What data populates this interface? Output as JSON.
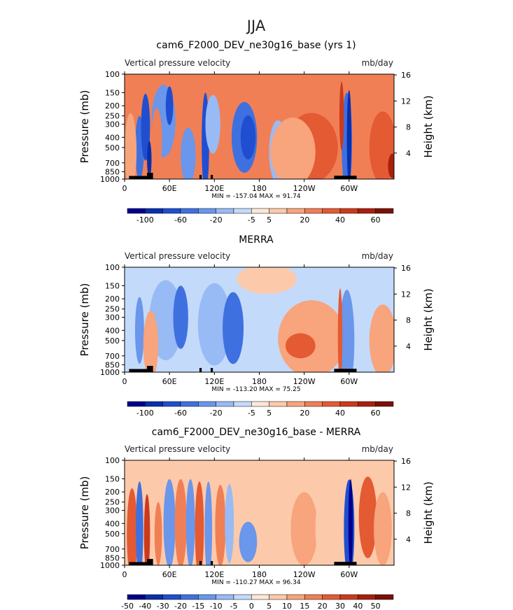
{
  "page": {
    "title": "JJA"
  },
  "chart_data": [
    {
      "type": "heatmap",
      "title": "cam6_F2000_DEV_ne30g16_base (yrs 1)",
      "variable_label": "Vertical pressure velocity",
      "units_label": "mb/day",
      "xlabel": "",
      "ylabel": "Pressure (mb)",
      "right_ylabel": "Height (km)",
      "x_ticks": [
        "0",
        "60E",
        "120E",
        "180",
        "120W",
        "60W"
      ],
      "x_tick_values": [
        0,
        60,
        120,
        180,
        240,
        300
      ],
      "xlim": [
        0,
        360
      ],
      "y_ticks": [
        "100",
        "150",
        "200",
        "250",
        "300",
        "400",
        "500",
        "700",
        "850",
        "1000"
      ],
      "y_tick_values": [
        100,
        150,
        200,
        250,
        300,
        400,
        500,
        700,
        850,
        1000
      ],
      "ylim": [
        1000,
        100
      ],
      "right_y_ticks": [
        "16",
        "12",
        "8",
        "4"
      ],
      "right_y_tick_values": [
        16,
        12,
        8,
        4
      ],
      "stats_text": "MIN = -157.04   MAX =  91.74",
      "colorbar": {
        "colors": [
          "#00008e",
          "#0a2fad",
          "#1f4fd0",
          "#3f70e0",
          "#6a96ec",
          "#98baf5",
          "#c3dafb",
          "#ffe7d6",
          "#fccaaa",
          "#f8a47c",
          "#f17f55",
          "#e45a33",
          "#cc3a1c",
          "#a9200c",
          "#7c0f06"
        ],
        "labels": [
          "-100",
          "-60",
          "-20",
          "-5",
          "5",
          "20",
          "40",
          "60"
        ],
        "label_boundary_index": [
          1,
          3,
          5,
          7,
          8,
          10,
          12,
          14
        ]
      },
      "fields": {
        "background": 3,
        "regions": [
          {
            "x": 52,
            "p": 280,
            "rx": 16,
            "rp": 210,
            "level": -3
          },
          {
            "x": 60,
            "p": 200,
            "rx": 5,
            "rp": 80,
            "level": -5
          },
          {
            "x": 20,
            "p": 500,
            "rx": 6,
            "rp": 300,
            "level": -4
          },
          {
            "x": 28,
            "p": 320,
            "rx": 6,
            "rp": 200,
            "level": -5
          },
          {
            "x": 33,
            "p": 650,
            "rx": 3,
            "rp": 250,
            "level": -6
          },
          {
            "x": 43,
            "p": 420,
            "rx": 7,
            "rp": 250,
            "level": 3
          },
          {
            "x": 8,
            "p": 550,
            "rx": 8,
            "rp": 380,
            "level": 2
          },
          {
            "x": 85,
            "p": 600,
            "rx": 10,
            "rp": 330,
            "level": -3
          },
          {
            "x": 108,
            "p": 450,
            "rx": 5,
            "rp": 450,
            "level": -5
          },
          {
            "x": 118,
            "p": 300,
            "rx": 10,
            "rp": 170,
            "level": -2
          },
          {
            "x": 160,
            "p": 400,
            "rx": 17,
            "rp": 260,
            "level": -4
          },
          {
            "x": 165,
            "p": 400,
            "rx": 10,
            "rp": 180,
            "level": -5
          },
          {
            "x": 205,
            "p": 550,
            "rx": 12,
            "rp": 330,
            "level": -2
          },
          {
            "x": 250,
            "p": 500,
            "rx": 35,
            "rp": 320,
            "level": 4
          },
          {
            "x": 225,
            "p": 550,
            "rx": 30,
            "rp": 350,
            "level": 2
          },
          {
            "x": 297,
            "p": 450,
            "rx": 7,
            "rp": 450,
            "level": -4
          },
          {
            "x": 300,
            "p": 400,
            "rx": 3,
            "rp": 400,
            "level": -6
          },
          {
            "x": 290,
            "p": 250,
            "rx": 3,
            "rp": 200,
            "level": 5
          },
          {
            "x": 345,
            "p": 500,
            "rx": 18,
            "rp": 330,
            "level": 4
          },
          {
            "x": 358,
            "p": 750,
            "rx": 6,
            "rp": 200,
            "level": 6
          }
        ],
        "topography": [
          [
            6,
            30,
            15
          ],
          [
            30,
            38,
            60
          ],
          [
            100,
            103,
            30
          ],
          [
            115,
            118,
            30
          ],
          [
            280,
            310,
            18
          ]
        ]
      }
    },
    {
      "type": "heatmap",
      "title": "MERRA",
      "variable_label": "Vertical pressure velocity",
      "units_label": "mb/day",
      "xlabel": "",
      "ylabel": "Pressure (mb)",
      "right_ylabel": "Height (km)",
      "x_ticks": [
        "0",
        "60E",
        "120E",
        "180",
        "120W",
        "60W"
      ],
      "x_tick_values": [
        0,
        60,
        120,
        180,
        240,
        300
      ],
      "xlim": [
        0,
        360
      ],
      "y_ticks": [
        "100",
        "150",
        "200",
        "250",
        "300",
        "400",
        "500",
        "700",
        "850",
        "1000"
      ],
      "y_tick_values": [
        100,
        150,
        200,
        250,
        300,
        400,
        500,
        700,
        850,
        1000
      ],
      "ylim": [
        1000,
        100
      ],
      "right_y_ticks": [
        "16",
        "12",
        "8",
        "4"
      ],
      "right_y_tick_values": [
        16,
        12,
        8,
        4
      ],
      "stats_text": "MIN = -113.20   MAX =  75.25",
      "colorbar": {
        "colors": [
          "#00008e",
          "#0a2fad",
          "#1f4fd0",
          "#3f70e0",
          "#6a96ec",
          "#98baf5",
          "#c3dafb",
          "#ffe7d6",
          "#fccaaa",
          "#f8a47c",
          "#f17f55",
          "#e45a33",
          "#cc3a1c",
          "#a9200c",
          "#7c0f06"
        ],
        "labels": [
          "-100",
          "-60",
          "-20",
          "-5",
          "5",
          "20",
          "40",
          "60"
        ],
        "label_boundary_index": [
          1,
          3,
          5,
          7,
          8,
          10,
          12,
          14
        ]
      },
      "fields": {
        "background": -1,
        "regions": [
          {
            "x": 55,
            "p": 320,
            "rx": 22,
            "rp": 260,
            "level": -2
          },
          {
            "x": 75,
            "p": 300,
            "rx": 10,
            "rp": 180,
            "level": -4
          },
          {
            "x": 120,
            "p": 350,
            "rx": 22,
            "rp": 260,
            "level": -2
          },
          {
            "x": 145,
            "p": 380,
            "rx": 14,
            "rp": 250,
            "level": -4
          },
          {
            "x": 20,
            "p": 400,
            "rx": 6,
            "rp": 250,
            "level": -3
          },
          {
            "x": 35,
            "p": 550,
            "rx": 10,
            "rp": 350,
            "level": 2
          },
          {
            "x": 250,
            "p": 480,
            "rx": 45,
            "rp": 330,
            "level": 2
          },
          {
            "x": 235,
            "p": 560,
            "rx": 20,
            "rp": 150,
            "level": 4
          },
          {
            "x": 297,
            "p": 500,
            "rx": 10,
            "rp": 430,
            "level": -3
          },
          {
            "x": 288,
            "p": 450,
            "rx": 3,
            "rp": 350,
            "level": 4
          },
          {
            "x": 345,
            "p": 500,
            "rx": 18,
            "rp": 330,
            "level": 2
          },
          {
            "x": 190,
            "p": 130,
            "rx": 40,
            "rp": 60,
            "level": 1
          }
        ],
        "topography": [
          [
            6,
            30,
            15
          ],
          [
            30,
            38,
            60
          ],
          [
            100,
            103,
            30
          ],
          [
            115,
            118,
            30
          ],
          [
            280,
            310,
            18
          ]
        ]
      }
    },
    {
      "type": "heatmap",
      "title": "cam6_F2000_DEV_ne30g16_base - MERRA",
      "variable_label": "Vertical pressure velocity",
      "units_label": "mb/day",
      "xlabel": "",
      "ylabel": "Pressure (mb)",
      "right_ylabel": "Height (km)",
      "x_ticks": [
        "0",
        "60E",
        "120E",
        "180",
        "120W",
        "60W"
      ],
      "x_tick_values": [
        0,
        60,
        120,
        180,
        240,
        300
      ],
      "xlim": [
        0,
        360
      ],
      "y_ticks": [
        "100",
        "150",
        "200",
        "250",
        "300",
        "400",
        "500",
        "700",
        "850",
        "1000"
      ],
      "y_tick_values": [
        100,
        150,
        200,
        250,
        300,
        400,
        500,
        700,
        850,
        1000
      ],
      "ylim": [
        1000,
        100
      ],
      "right_y_ticks": [
        "16",
        "12",
        "8",
        "4"
      ],
      "right_y_tick_values": [
        16,
        12,
        8,
        4
      ],
      "stats_text": "MIN = -110.27   MAX =  96.34",
      "colorbar": {
        "colors": [
          "#00008e",
          "#0a2fad",
          "#1f4fd0",
          "#3f70e0",
          "#6a96ec",
          "#98baf5",
          "#c3dafb",
          "#ffe7d6",
          "#fccaaa",
          "#f8a47c",
          "#f17f55",
          "#e45a33",
          "#cc3a1c",
          "#a9200c",
          "#7c0f06"
        ],
        "labels": [
          "-50",
          "-40",
          "-30",
          "-20",
          "-15",
          "-10",
          "-5",
          "0",
          "5",
          "10",
          "15",
          "20",
          "30",
          "40",
          "50"
        ],
        "label_boundary_index": [
          0,
          1,
          2,
          3,
          4,
          5,
          6,
          7,
          8,
          9,
          10,
          11,
          12,
          13,
          14
        ]
      },
      "fields": {
        "background": 1,
        "regions": [
          {
            "x": 10,
            "p": 500,
            "rx": 7,
            "rp": 380,
            "level": 4
          },
          {
            "x": 20,
            "p": 450,
            "rx": 5,
            "rp": 350,
            "level": -4
          },
          {
            "x": 30,
            "p": 500,
            "rx": 4,
            "rp": 350,
            "level": 5
          },
          {
            "x": 45,
            "p": 500,
            "rx": 5,
            "rp": 300,
            "level": 3
          },
          {
            "x": 60,
            "p": 400,
            "rx": 8,
            "rp": 300,
            "level": -3
          },
          {
            "x": 75,
            "p": 400,
            "rx": 8,
            "rp": 300,
            "level": 3
          },
          {
            "x": 88,
            "p": 400,
            "rx": 6,
            "rp": 300,
            "level": -3
          },
          {
            "x": 100,
            "p": 450,
            "rx": 6,
            "rp": 350,
            "level": 4
          },
          {
            "x": 112,
            "p": 450,
            "rx": 5,
            "rp": 350,
            "level": -3
          },
          {
            "x": 128,
            "p": 420,
            "rx": 7,
            "rp": 300,
            "level": 3
          },
          {
            "x": 140,
            "p": 400,
            "rx": 6,
            "rp": 280,
            "level": -2
          },
          {
            "x": 165,
            "p": 600,
            "rx": 12,
            "rp": 250,
            "level": -3
          },
          {
            "x": 240,
            "p": 450,
            "rx": 18,
            "rp": 300,
            "level": 2
          },
          {
            "x": 265,
            "p": 450,
            "rx": 10,
            "rp": 300,
            "level": 1
          },
          {
            "x": 300,
            "p": 450,
            "rx": 7,
            "rp": 420,
            "level": -5
          },
          {
            "x": 302,
            "p": 400,
            "rx": 3,
            "rp": 300,
            "level": -7
          },
          {
            "x": 325,
            "p": 350,
            "rx": 12,
            "rp": 250,
            "level": 4
          },
          {
            "x": 345,
            "p": 450,
            "rx": 12,
            "rp": 300,
            "level": 2
          }
        ],
        "topography": [
          [
            6,
            30,
            15
          ],
          [
            30,
            38,
            60
          ],
          [
            100,
            103,
            30
          ],
          [
            115,
            118,
            30
          ],
          [
            280,
            310,
            18
          ]
        ]
      }
    }
  ]
}
